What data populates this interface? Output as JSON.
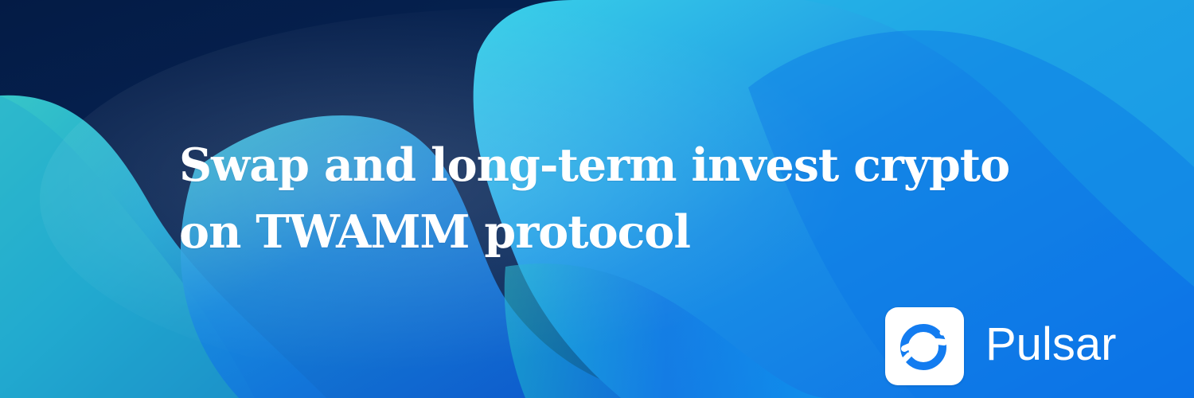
{
  "banner": {
    "headline_line_1": "Swap and long-term invest crypto",
    "headline_line_2": "on TWAMM protocol"
  },
  "brand": {
    "name": "Pulsar",
    "logo_icon": "pulsar-logo-icon",
    "logo_color": "#137cf0"
  },
  "colors": {
    "background_navy": "#06224f",
    "wave_cyan": "#2ec4d8",
    "wave_blue": "#0a75df",
    "text": "#ffffff"
  }
}
